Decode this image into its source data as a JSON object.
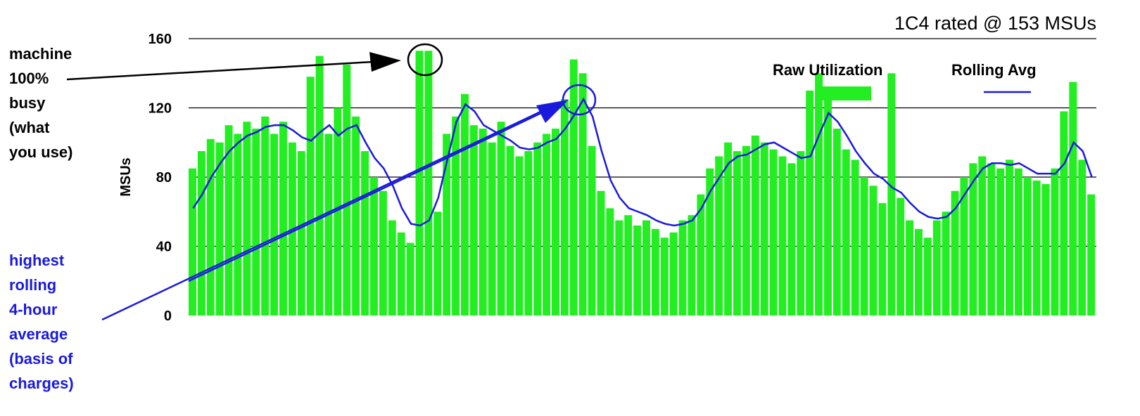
{
  "chart_data": {
    "type": "bar",
    "title": "1C4 rated @ 153 MSUs",
    "ylabel": "MSUs",
    "ylim": [
      0,
      160
    ],
    "yticks": [
      0,
      40,
      80,
      120,
      160
    ],
    "grid": true,
    "legend": "top right",
    "annotations": [
      "machine",
      "100%",
      "busy",
      "(what",
      "you use)",
      "highest",
      "rolling",
      "4-hour",
      "average",
      "(basis of",
      "charges)"
    ],
    "series": [
      {
        "name": "Raw Utilization",
        "type": "bar",
        "color": "#22ee22",
        "values": [
          85,
          95,
          102,
          100,
          110,
          105,
          112,
          108,
          115,
          105,
          112,
          100,
          95,
          138,
          150,
          105,
          120,
          145,
          115,
          95,
          80,
          72,
          55,
          48,
          42,
          153,
          153,
          60,
          105,
          115,
          128,
          110,
          108,
          100,
          112,
          98,
          92,
          95,
          100,
          105,
          108,
          125,
          148,
          140,
          98,
          72,
          62,
          55,
          58,
          52,
          55,
          50,
          45,
          48,
          55,
          58,
          70,
          85,
          92,
          100,
          95,
          98,
          104,
          100,
          96,
          92,
          88,
          95,
          130,
          140,
          125,
          108,
          96,
          90,
          80,
          75,
          65,
          140,
          68,
          55,
          50,
          45,
          55,
          60,
          72,
          80,
          88,
          92,
          88,
          85,
          90,
          85,
          80,
          78,
          76,
          85,
          118,
          135,
          90,
          70
        ]
      },
      {
        "name": "Rolling Avg",
        "type": "line",
        "color": "#1a1adc",
        "values": [
          62,
          70,
          80,
          88,
          95,
          100,
          104,
          106,
          109,
          110,
          110,
          107,
          103,
          101,
          106,
          110,
          104,
          108,
          110,
          100,
          91,
          85,
          75,
          62,
          53,
          52,
          55,
          68,
          90,
          112,
          122,
          118,
          110,
          107,
          104,
          101,
          97,
          96,
          97,
          100,
          102,
          108,
          116,
          125,
          115,
          95,
          78,
          68,
          62,
          60,
          58,
          55,
          53,
          52,
          53,
          55,
          62,
          72,
          80,
          88,
          92,
          93,
          96,
          99,
          100,
          97,
          94,
          91,
          92,
          105,
          117,
          112,
          104,
          95,
          88,
          82,
          79,
          74,
          71,
          65,
          60,
          57,
          56,
          57,
          62,
          70,
          78,
          85,
          88,
          88,
          87,
          88,
          85,
          82,
          82,
          82,
          88,
          100,
          95,
          80
        ]
      }
    ]
  }
}
